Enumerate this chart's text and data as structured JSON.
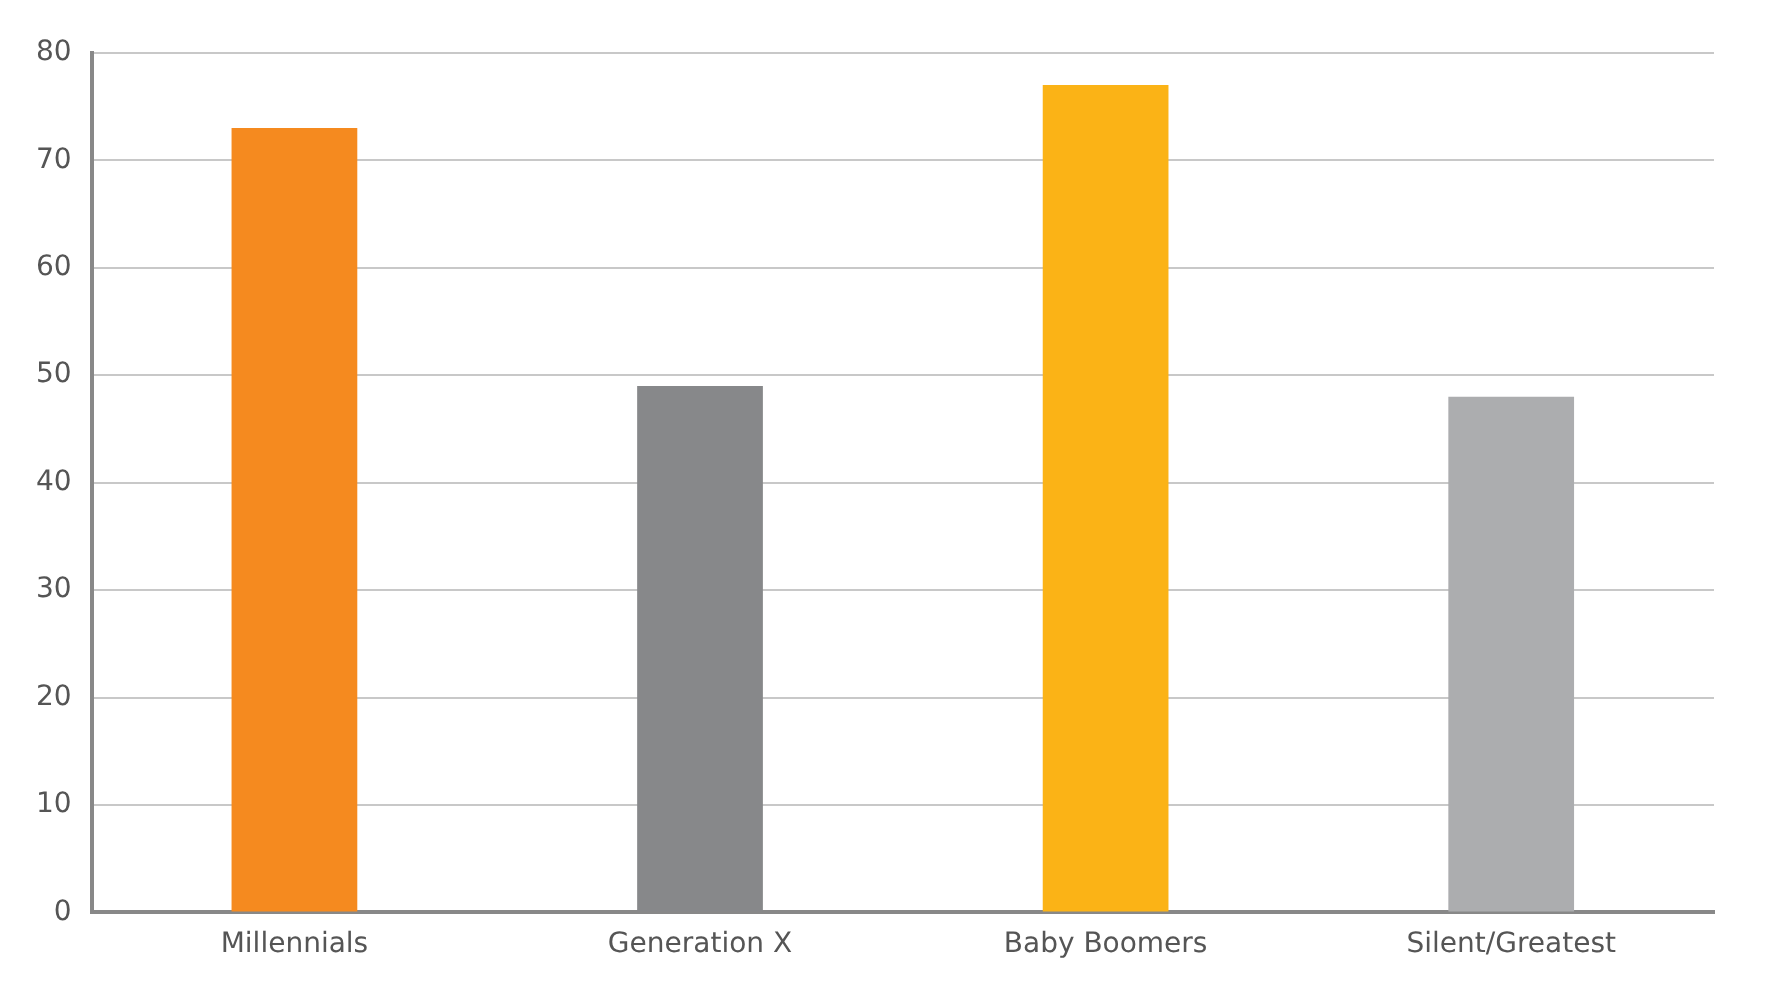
{
  "chart_data": {
    "type": "bar",
    "categories": [
      "Millennials",
      "Generation X",
      "Baby Boomers",
      "Silent/Greatest"
    ],
    "values": [
      73,
      49,
      77,
      48
    ],
    "colors": [
      "#f58a1f",
      "#87888a",
      "#fbb316",
      "#acadaf"
    ],
    "ylim": [
      0,
      80
    ],
    "yticks": [
      0,
      10,
      20,
      30,
      40,
      50,
      60,
      70,
      80
    ],
    "grid": "y",
    "legend": false
  }
}
